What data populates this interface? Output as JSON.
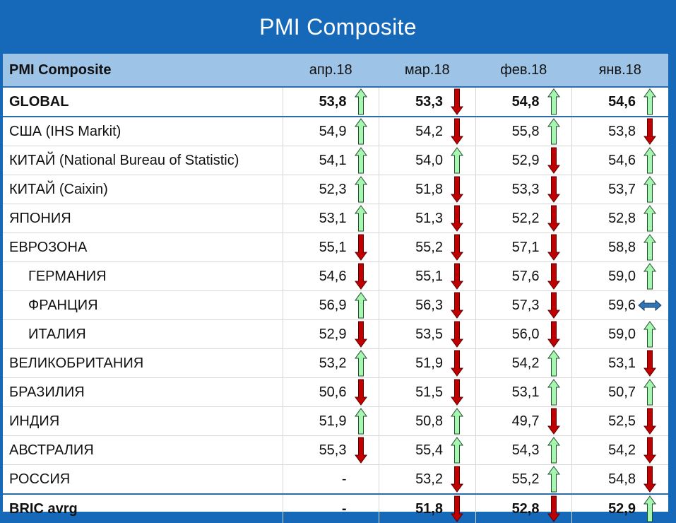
{
  "title": "PMI Composite",
  "header": {
    "name_label": "PMI Composite",
    "columns": [
      "апр.18",
      "мар.18",
      "фев.18",
      "янв.18"
    ]
  },
  "colors": {
    "up": "#a6f5b0",
    "down": "#c00000",
    "flat": "#2e75b6",
    "header_bg": "#9dc3e6",
    "frame": "#1668b8"
  },
  "chart_data": {
    "type": "table",
    "title": "PMI Composite",
    "columns": [
      "апр.18",
      "мар.18",
      "фев.18",
      "янв.18"
    ],
    "rows": [
      {
        "name": "GLOBAL",
        "bold": true,
        "values": [
          "53,8",
          "53,3",
          "54,8",
          "54,6"
        ],
        "trend": [
          "up",
          "down",
          "up",
          "up"
        ]
      },
      {
        "name": "США (IHS Markit)",
        "values": [
          "54,9",
          "54,2",
          "55,8",
          "53,8"
        ],
        "trend": [
          "up",
          "down",
          "up",
          "down"
        ]
      },
      {
        "name": "КИТАЙ (National Bureau of Statistic)",
        "values": [
          "54,1",
          "54,0",
          "52,9",
          "54,6"
        ],
        "trend": [
          "up",
          "up",
          "down",
          "up"
        ]
      },
      {
        "name": "КИТАЙ (Caixin)",
        "values": [
          "52,3",
          "51,8",
          "53,3",
          "53,7"
        ],
        "trend": [
          "up",
          "down",
          "down",
          "up"
        ]
      },
      {
        "name": "ЯПОНИЯ",
        "values": [
          "53,1",
          "51,3",
          "52,2",
          "52,8"
        ],
        "trend": [
          "up",
          "down",
          "down",
          "up"
        ]
      },
      {
        "name": "ЕВРОЗОНА",
        "values": [
          "55,1",
          "55,2",
          "57,1",
          "58,8"
        ],
        "trend": [
          "down",
          "down",
          "down",
          "up"
        ]
      },
      {
        "name": "ГЕРМАНИЯ",
        "indent": true,
        "values": [
          "54,6",
          "55,1",
          "57,6",
          "59,0"
        ],
        "trend": [
          "down",
          "down",
          "down",
          "up"
        ]
      },
      {
        "name": "ФРАНЦИЯ",
        "indent": true,
        "values": [
          "56,9",
          "56,3",
          "57,3",
          "59,6"
        ],
        "trend": [
          "up",
          "down",
          "down",
          "flat"
        ]
      },
      {
        "name": "ИТАЛИЯ",
        "indent": true,
        "values": [
          "52,9",
          "53,5",
          "56,0",
          "59,0"
        ],
        "trend": [
          "down",
          "down",
          "down",
          "up"
        ]
      },
      {
        "name": "ВЕЛИКОБРИТАНИЯ",
        "values": [
          "53,2",
          "51,9",
          "54,2",
          "53,1"
        ],
        "trend": [
          "up",
          "down",
          "up",
          "down"
        ]
      },
      {
        "name": "БРАЗИЛИЯ",
        "values": [
          "50,6",
          "51,5",
          "53,1",
          "50,7"
        ],
        "trend": [
          "down",
          "down",
          "up",
          "up"
        ]
      },
      {
        "name": "ИНДИЯ",
        "values": [
          "51,9",
          "50,8",
          "49,7",
          "52,5"
        ],
        "trend": [
          "up",
          "up",
          "down",
          "down"
        ]
      },
      {
        "name": "АВСТРАЛИЯ",
        "values": [
          "55,3",
          "55,4",
          "54,3",
          "54,2"
        ],
        "trend": [
          "down",
          "up",
          "up",
          "down"
        ]
      },
      {
        "name": "РОССИЯ",
        "values": [
          "-",
          "53,2",
          "55,2",
          "54,8"
        ],
        "trend": [
          "none",
          "down",
          "up",
          "down"
        ]
      },
      {
        "name": "BRIC avrg",
        "bold": true,
        "values": [
          "-",
          "51,8",
          "52,8",
          "52,9"
        ],
        "trend": [
          "none",
          "down",
          "down",
          "up"
        ]
      }
    ]
  }
}
